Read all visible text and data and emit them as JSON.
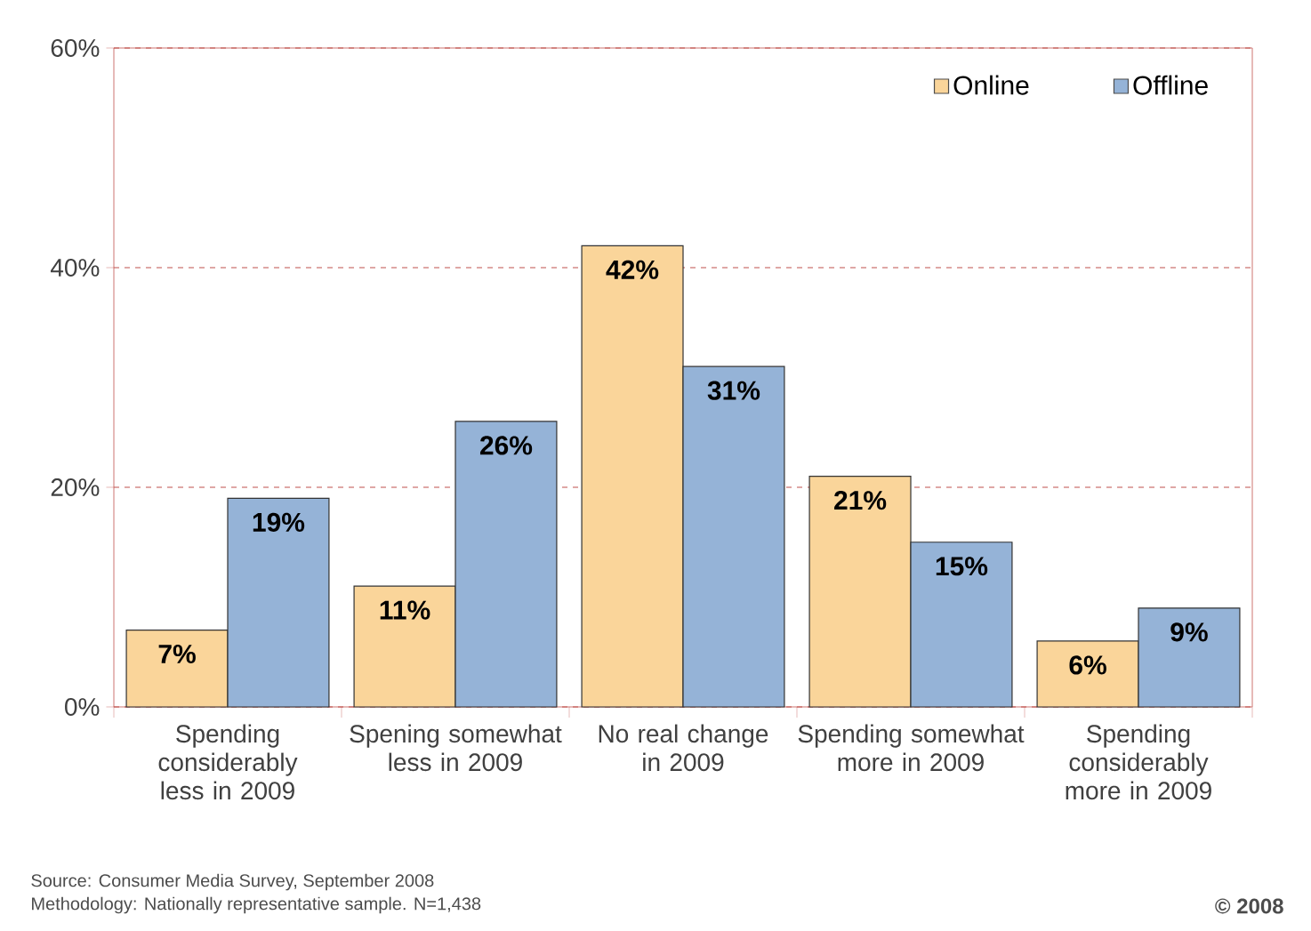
{
  "chart_data": {
    "type": "bar",
    "categories": [
      "Spending considerably less in 2009",
      "Spening somewhat less in 2009",
      "No real change in 2009",
      "Spending somewhat more in 2009",
      "Spending considerably more in 2009"
    ],
    "series": [
      {
        "name": "Online",
        "color": "#fad59a",
        "values": [
          7,
          11,
          42,
          21,
          6
        ],
        "value_labels": [
          "7%",
          "11%",
          "42%",
          "21%",
          "6%"
        ]
      },
      {
        "name": "Offline",
        "color": "#95b3d7",
        "values": [
          19,
          26,
          31,
          15,
          9
        ],
        "value_labels": [
          "19%",
          "26%",
          "31%",
          "15%",
          "9%"
        ]
      }
    ],
    "ylim": [
      0,
      60
    ],
    "yticks": [
      {
        "value": 0,
        "label": "0%"
      },
      {
        "value": 20,
        "label": "20%"
      },
      {
        "value": 40,
        "label": "40%"
      },
      {
        "value": 60,
        "label": "60%"
      }
    ],
    "grid": "y",
    "legend": "top right",
    "annotations": [
      "Source: Consumer Media Survey, September 2008",
      "Methodology: Nationally representative sample. N=1,438",
      "© 2008"
    ]
  }
}
